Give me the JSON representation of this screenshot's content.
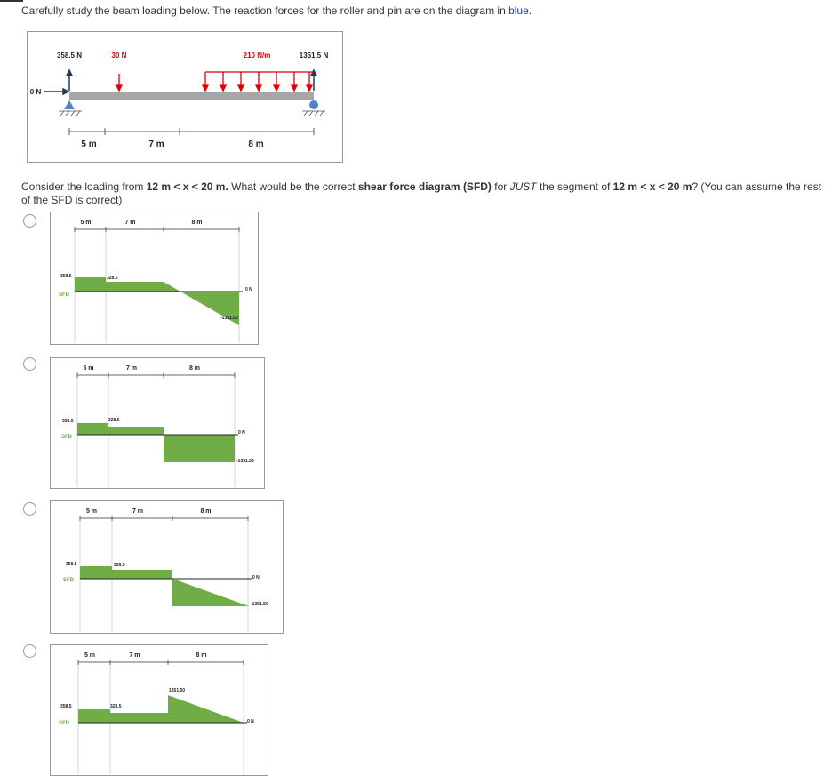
{
  "intro": {
    "text": "Carefully study the beam loading below. The reaction forces for the roller and pin are on the diagram in ",
    "highlight": "blue",
    "end": "."
  },
  "beam": {
    "left_reaction": "358.5 N",
    "point_load": "30 N",
    "distributed_load": "210 N/m",
    "right_reaction": "1351.5 N",
    "horizontal_reaction": "0 N",
    "spans": [
      "5 m",
      "7 m",
      "8 m"
    ]
  },
  "question": {
    "parts": [
      "Consider the loading from ",
      "12 m < x < 20 m.",
      " What would be the correct ",
      "shear force diagram (SFD)",
      " for ",
      "JUST",
      " the segment of ",
      "12 m < x < 20 m",
      "? (You can assume the rest of the SFD is correct)"
    ]
  },
  "options": [
    {
      "spans": [
        "5 m",
        "7 m",
        "8 m"
      ],
      "axis_label": "SFD",
      "labels": [
        "358.5",
        "328.5",
        "0 N",
        "-1351.50"
      ]
    },
    {
      "spans": [
        "5 m",
        "7 m",
        "8 m"
      ],
      "axis_label": "SFD",
      "labels": [
        "358.5",
        "328.5",
        "0 N",
        "-1351.50"
      ]
    },
    {
      "spans": [
        "5 m",
        "7 m",
        "8 m"
      ],
      "axis_label": "SFD",
      "labels": [
        "358.5",
        "328.5",
        "0 N",
        "-1351.50"
      ]
    },
    {
      "spans": [
        "5 m",
        "7 m",
        "8 m"
      ],
      "axis_label": "SFD",
      "labels": [
        "358.5",
        "328.5",
        "1351.50",
        "0 N"
      ]
    }
  ]
}
